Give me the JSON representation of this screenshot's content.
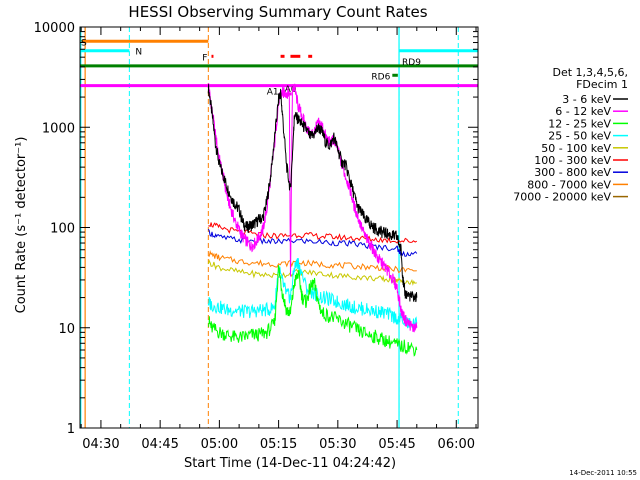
{
  "chart_data": {
    "type": "line",
    "title": "HESSI Observing Summary Count Rates",
    "xlabel": "Start Time (14-Dec-11 04:24:42)",
    "ylabel": "Count Rate (s⁻¹ detector⁻¹)",
    "ylog": true,
    "ylim": [
      1,
      10000
    ],
    "xlim_minutes": [
      264.7,
      365.5
    ],
    "x_ticks": [
      {
        "label": "04:30",
        "minute": 270
      },
      {
        "label": "04:45",
        "minute": 285
      },
      {
        "label": "05:00",
        "minute": 300
      },
      {
        "label": "05:15",
        "minute": 315
      },
      {
        "label": "05:30",
        "minute": 330
      },
      {
        "label": "05:45",
        "minute": 345
      },
      {
        "label": "06:00",
        "minute": 360
      }
    ],
    "y_ticks": [
      {
        "label": "1",
        "value": 1
      },
      {
        "label": "10",
        "value": 10
      },
      {
        "label": "100",
        "value": 100
      },
      {
        "label": "1000",
        "value": 1000
      },
      {
        "label": "10000",
        "value": 10000
      }
    ],
    "legend_header": [
      "Det 1,3,4,5,6,",
      "FDecim 1"
    ],
    "legend_position": "right",
    "series": [
      {
        "name": "3 - 6 keV",
        "color": "#000000",
        "x": [
          297.2,
          298,
          299,
          300,
          301,
          302,
          303,
          304,
          305,
          306,
          307,
          308,
          309,
          310,
          311,
          312,
          313,
          314,
          315,
          315.5,
          316,
          317,
          318,
          318.8,
          319,
          320,
          321,
          322,
          323,
          324,
          325,
          326,
          327,
          328,
          329,
          330,
          331,
          332,
          333,
          334,
          335,
          336,
          337,
          338,
          339,
          340,
          341,
          342,
          343,
          344,
          345,
          346,
          346.5,
          347,
          348,
          349,
          350
        ],
        "y": [
          2500,
          1500,
          700,
          420,
          330,
          250,
          200,
          170,
          150,
          110,
          100,
          105,
          110,
          120,
          125,
          180,
          330,
          800,
          1900,
          2200,
          1300,
          420,
          230,
          900,
          1300,
          1200,
          1050,
          950,
          800,
          850,
          1000,
          900,
          700,
          650,
          800,
          600,
          450,
          420,
          300,
          220,
          160,
          140,
          120,
          110,
          100,
          95,
          90,
          88,
          85,
          82,
          80,
          60,
          30,
          22,
          21,
          20,
          20
        ]
      },
      {
        "name": "6 - 12 keV",
        "color": "#ff00ff",
        "x": [
          297.2,
          298,
          299,
          300,
          301,
          302,
          303,
          304,
          305,
          306,
          307,
          308,
          309,
          310,
          311,
          312,
          313,
          314,
          315,
          315.5,
          316,
          317,
          317.7,
          318,
          318.5,
          319,
          320,
          321,
          322,
          323,
          324,
          325,
          326,
          327,
          328,
          329,
          330,
          331,
          332,
          333,
          334,
          335,
          336,
          337,
          338,
          339,
          340,
          341,
          342,
          343,
          344,
          345,
          346,
          347,
          348,
          349,
          350
        ],
        "y": [
          2700,
          1600,
          850,
          480,
          320,
          200,
          150,
          115,
          95,
          80,
          72,
          65,
          70,
          80,
          95,
          150,
          320,
          700,
          1800,
          2100,
          2200,
          2200,
          2200,
          30,
          2400,
          2500,
          1600,
          1300,
          1000,
          850,
          900,
          1100,
          1050,
          800,
          700,
          750,
          600,
          420,
          320,
          250,
          170,
          130,
          100,
          80,
          70,
          60,
          50,
          45,
          40,
          35,
          30,
          25,
          15,
          12,
          11,
          10,
          10
        ]
      },
      {
        "name": "12 - 25 keV",
        "color": "#00ff00",
        "x": [
          297.2,
          298,
          300,
          302,
          304,
          306,
          308,
          310,
          312,
          314,
          315,
          316,
          317,
          318,
          319,
          320,
          321,
          322,
          323,
          324,
          325,
          326,
          328,
          330,
          332,
          334,
          336,
          338,
          340,
          342,
          344,
          346,
          348,
          350
        ],
        "y": [
          12,
          10,
          9,
          8.5,
          8,
          8,
          8.5,
          8.5,
          9,
          11,
          40,
          22,
          15,
          14,
          28,
          35,
          20,
          18,
          25,
          28,
          18,
          14,
          13,
          12,
          11,
          10,
          9,
          8.5,
          8,
          7.5,
          7,
          6.5,
          6.5,
          6
        ]
      },
      {
        "name": "25 - 50 keV",
        "color": "#00ffff",
        "x": [
          297.2,
          298,
          300,
          302,
          304,
          306,
          308,
          310,
          312,
          314,
          315,
          316,
          317,
          318,
          319,
          320,
          322,
          324,
          326,
          328,
          330,
          332,
          334,
          336,
          338,
          340,
          342,
          344,
          346,
          348,
          350
        ],
        "y": [
          18,
          17,
          16,
          15,
          15,
          14.5,
          14.5,
          15,
          15,
          16,
          40,
          28,
          22,
          20,
          40,
          45,
          25,
          22,
          20,
          19,
          18,
          17,
          16,
          15.5,
          15,
          14.5,
          14,
          13,
          12,
          11,
          11
        ]
      },
      {
        "name": "50 - 100 keV",
        "color": "#c8c800",
        "x": [
          297.2,
          300,
          305,
          310,
          315,
          320,
          325,
          330,
          335,
          340,
          343,
          345,
          347,
          350
        ],
        "y": [
          45,
          40,
          36,
          34,
          33,
          36,
          35,
          33,
          32,
          31,
          30,
          30,
          28,
          28
        ]
      },
      {
        "name": "100 - 300 keV",
        "color": "#ff0000",
        "x": [
          297.2,
          300,
          305,
          310,
          315,
          320,
          325,
          330,
          335,
          340,
          345,
          350
        ],
        "y": [
          110,
          100,
          90,
          85,
          82,
          85,
          82,
          80,
          78,
          76,
          74,
          73
        ]
      },
      {
        "name": "300 - 800 keV",
        "color": "#0000dd",
        "x": [
          297.2,
          300,
          305,
          310,
          315,
          320,
          325,
          330,
          335,
          340,
          345,
          346,
          350
        ],
        "y": [
          90,
          80,
          75,
          73,
          72,
          74,
          72,
          70,
          68,
          64,
          62,
          55,
          55
        ]
      },
      {
        "name": "800 - 7000 keV",
        "color": "#ff8000",
        "x": [
          297.2,
          300,
          305,
          310,
          315,
          320,
          325,
          330,
          335,
          340,
          345,
          350
        ],
        "y": [
          55,
          50,
          46,
          44,
          43,
          45,
          43,
          42,
          41,
          40,
          38,
          37
        ]
      },
      {
        "name": "7000 - 20000 keV",
        "color": "#996600",
        "x": [],
        "y": []
      }
    ],
    "flag_bars": [
      {
        "label": "S",
        "color": "#ff8000",
        "y_level": 7200,
        "segments": [
          [
            264.7,
            297.2
          ]
        ],
        "vlines_dashed": [
          297.2
        ],
        "vlines_solid": [
          266.0
        ]
      },
      {
        "label": "N",
        "color": "#00ffff",
        "y_level": 5800,
        "segments": [
          [
            264.7,
            277.2
          ],
          [
            345.5,
            365.5
          ]
        ],
        "vlines_dashed": [
          277.2,
          345.5,
          360.5
        ],
        "vlines_solid": [
          264.9,
          345.5
        ]
      },
      {
        "label": "F",
        "color": "#ff0000",
        "y_level": 5100,
        "segments": [
          [
            298.0,
            298.5
          ],
          [
            315.5,
            316.5
          ],
          [
            318.0,
            320.5
          ],
          [
            322.5,
            323.5
          ]
        ]
      },
      {
        "label": "RD9",
        "color": "#008000",
        "y_level": 4100,
        "segments": [
          [
            264.7,
            365.5
          ]
        ]
      },
      {
        "label": "RD6",
        "color": "#008000",
        "y_level": 3300,
        "segments": [
          [
            343.8,
            345.2
          ]
        ]
      },
      {
        "label": "A1",
        "color": "#ff00ff",
        "y_level": 2600,
        "segments": [
          [
            264.7,
            365.5
          ]
        ]
      },
      {
        "label": "A0",
        "color": "#ff00ff",
        "y_level": 2150,
        "segments": [
          [
            315.5,
            318.3
          ]
        ]
      }
    ],
    "footer_date": "14-Dec-2011 10:55"
  }
}
